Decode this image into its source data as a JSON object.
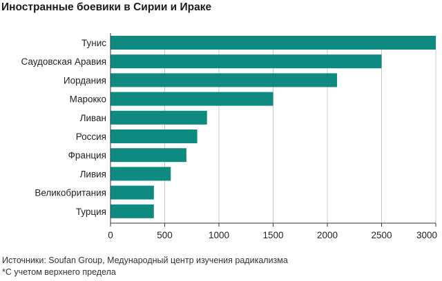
{
  "title": "Иностранные боевики в Сирии и Ираке",
  "source_line": "Источники: Soufan Group, Медународный центр изучения радикализма",
  "note_line": "*С учетом верхнего предела",
  "colors": {
    "bar": "#0f8a80",
    "grid": "#c8c8c8",
    "axis": "#333333"
  },
  "chart_data": {
    "type": "bar",
    "orientation": "horizontal",
    "title": "Иностранные боевики в Сирии и Ираке",
    "categories": [
      "Тунис",
      "Саудовская Аравия",
      "Иордания",
      "Марокко",
      "Ливан",
      "Россия",
      "Франция",
      "Ливия",
      "Великобритания",
      "Турция"
    ],
    "values": [
      3000,
      2500,
      2089,
      1500,
      890,
      800,
      700,
      556,
      400,
      400
    ],
    "xlim": [
      0,
      3000
    ],
    "xticks": [
      0,
      500,
      1000,
      1500,
      2000,
      2500,
      3000
    ],
    "grid": true,
    "xlabel": "",
    "ylabel": ""
  }
}
